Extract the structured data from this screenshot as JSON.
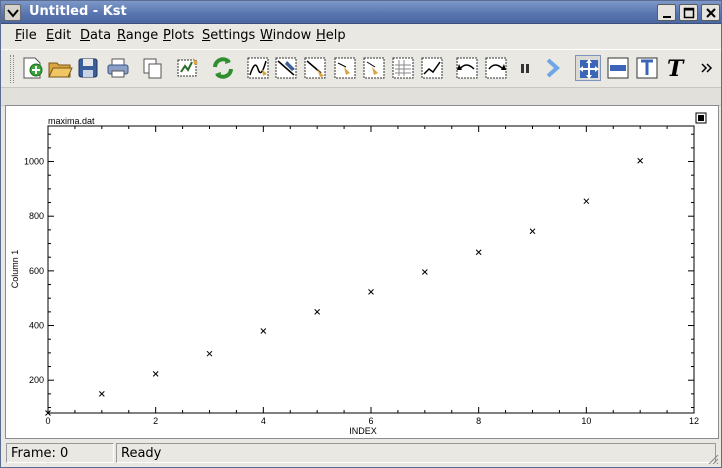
{
  "window": {
    "title": "Untitled - Kst"
  },
  "menubar": {
    "items": [
      {
        "label": "File",
        "mnemonic": "F",
        "rest": "ile"
      },
      {
        "label": "Edit",
        "mnemonic": "E",
        "rest": "dit"
      },
      {
        "label": "Data",
        "mnemonic": "D",
        "rest": "ata"
      },
      {
        "label": "Range",
        "mnemonic": "R",
        "rest": "ange"
      },
      {
        "label": "Plots",
        "mnemonic": "P",
        "rest": "lots"
      },
      {
        "label": "Settings",
        "mnemonic": "S",
        "rest": "ettings"
      },
      {
        "label": "Window",
        "mnemonic": "W",
        "rest": "indow"
      },
      {
        "label": "Help",
        "mnemonic": "H",
        "rest": "elp"
      }
    ]
  },
  "toolbar": {
    "buttons": [
      "new-icon",
      "open-icon",
      "save-icon",
      "print-icon",
      "copy-icon",
      "data-wizard-icon",
      "reload-icon",
      "plot-wizard-icon",
      "edit-curve-icon",
      "edit-equation-icon",
      "edit-histogram-icon",
      "edit-spectrum-icon",
      "edit-image-icon",
      "edit-plugin-icon",
      "back-icon",
      "forward-icon",
      "pause-icon",
      "next-arrow-icon",
      "layout-mode-icon",
      "zoom-mode-icon",
      "text-mode-icon",
      "label-mode-icon",
      "more-icon"
    ]
  },
  "plot": {
    "title": "maxima.dat",
    "xlabel": "INDEX",
    "ylabel": "Column 1"
  },
  "chart_data": {
    "type": "scatter",
    "title": "maxima.dat",
    "xlabel": "INDEX",
    "ylabel": "Column 1",
    "xlim": [
      0,
      12
    ],
    "ylim": [
      80,
      1130
    ],
    "x_ticks": [
      0,
      2,
      4,
      6,
      8,
      10,
      12
    ],
    "y_ticks": [
      200,
      400,
      600,
      800,
      1000
    ],
    "marker": "x",
    "grid": false,
    "series": [
      {
        "name": "",
        "x": [
          0,
          1,
          2,
          3,
          4,
          5,
          6,
          7,
          8,
          9,
          10,
          11
        ],
        "y": [
          80,
          150,
          223,
          297,
          380,
          450,
          523,
          596,
          668,
          745,
          855,
          1003
        ]
      }
    ]
  },
  "statusbar": {
    "frame": "Frame: 0",
    "state": "Ready"
  }
}
